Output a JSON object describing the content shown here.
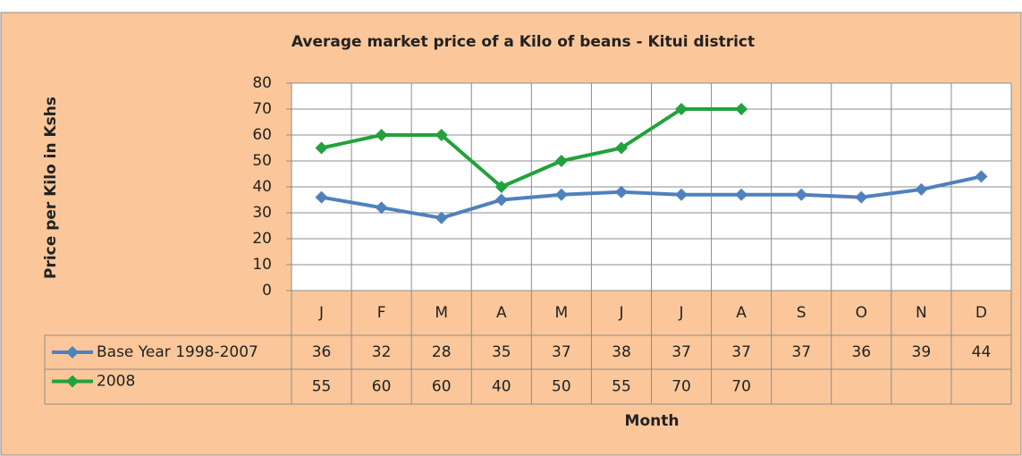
{
  "chart_data": {
    "type": "line",
    "title": "Average market price of a Kilo of beans - Kitui district",
    "x_label": "Month",
    "y_label": "Price per Kilo in Kshs",
    "categories": [
      "J",
      "F",
      "M",
      "A",
      "M",
      "J",
      "J",
      "A",
      "S",
      "O",
      "N",
      "D"
    ],
    "series": [
      {
        "name": "Base Year 1998-2007",
        "color": "#4f81bd",
        "values": [
          36,
          32,
          28,
          35,
          37,
          38,
          37,
          37,
          37,
          36,
          39,
          44
        ]
      },
      {
        "name": "2008",
        "color": "#22a23c",
        "values": [
          55,
          60,
          60,
          40,
          50,
          55,
          70,
          70,
          null,
          null,
          null,
          null
        ]
      }
    ],
    "ylim": [
      0,
      80
    ],
    "yticks": [
      0,
      10,
      20,
      30,
      40,
      50,
      60,
      70,
      80
    ],
    "grid": true,
    "data_table": true
  }
}
